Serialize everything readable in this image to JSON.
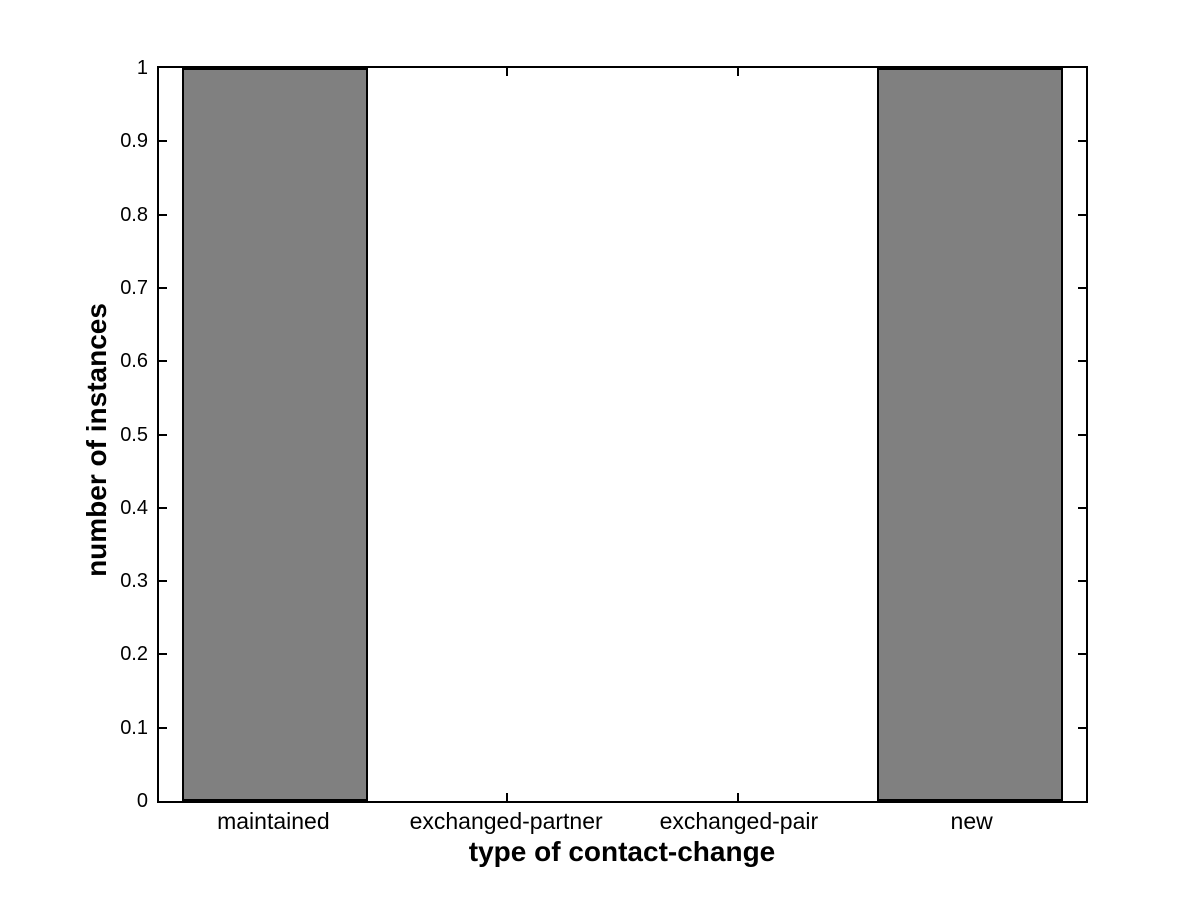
{
  "figure": {
    "background_color": "#ffffff",
    "axis_color": "#000000",
    "text_color": "#000000"
  },
  "chart_data": {
    "type": "bar",
    "title": "",
    "categories": [
      "maintained",
      "exchanged-partner",
      "exchanged-pair",
      "new"
    ],
    "values": [
      1,
      0,
      0,
      1
    ],
    "xlabel": "type of contact-change",
    "ylabel": "number of instances",
    "xlim": [
      0.5,
      4.5
    ],
    "ylim": [
      0,
      1
    ],
    "yticks": [
      0,
      0.1,
      0.2,
      0.3,
      0.4,
      0.5,
      0.6,
      0.7,
      0.8,
      0.9,
      1
    ],
    "ytick_labels": [
      "0",
      "0.1",
      "0.2",
      "0.3",
      "0.4",
      "0.5",
      "0.6",
      "0.7",
      "0.8",
      "0.9",
      "1"
    ],
    "bar_relative_width": 0.8,
    "bar_fill_color": "#808080",
    "bar_edge_color": "#000000",
    "grid": false,
    "box": true,
    "tick_direction": "in",
    "legend": "none"
  }
}
